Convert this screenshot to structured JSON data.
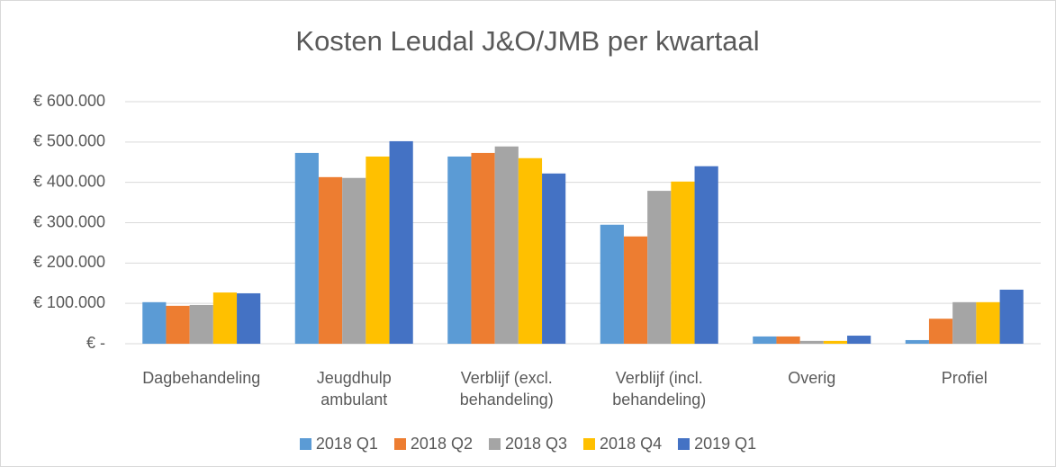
{
  "chart_data": {
    "type": "bar",
    "title": "Kosten Leudal J&O/JMB per kwartaal",
    "categories": [
      "Dagbehandeling",
      "Jeugdhulp ambulant",
      "Verblijf (excl. behandeling)",
      "Verblijf (incl. behandeling)",
      "Overig",
      "Profiel"
    ],
    "series": [
      {
        "name": "2018 Q1",
        "color": "#5b9bd5",
        "values": [
          103000,
          473000,
          464000,
          295000,
          18000,
          9000
        ]
      },
      {
        "name": "2018 Q2",
        "color": "#ed7d31",
        "values": [
          94000,
          413000,
          473000,
          266000,
          18000,
          62000
        ]
      },
      {
        "name": "2018 Q3",
        "color": "#a5a5a5",
        "values": [
          96000,
          411000,
          489000,
          379000,
          7000,
          103000
        ]
      },
      {
        "name": "2018 Q4",
        "color": "#ffc000",
        "values": [
          127000,
          464000,
          460000,
          402000,
          7000,
          103000
        ]
      },
      {
        "name": "2019 Q1",
        "color": "#4472c4",
        "values": [
          125000,
          502000,
          422000,
          440000,
          20000,
          134000
        ]
      }
    ],
    "ylim": [
      0,
      600000
    ],
    "yticks": [
      {
        "value": 0,
        "label": "€ -"
      },
      {
        "value": 100000,
        "label": "€ 100.000"
      },
      {
        "value": 200000,
        "label": "€ 200.000"
      },
      {
        "value": 300000,
        "label": "€ 300.000"
      },
      {
        "value": 400000,
        "label": "€ 400.000"
      },
      {
        "value": 500000,
        "label": "€ 500.000"
      },
      {
        "value": 600000,
        "label": "€ 600.000"
      }
    ],
    "grid": true,
    "legend": "bottom"
  }
}
